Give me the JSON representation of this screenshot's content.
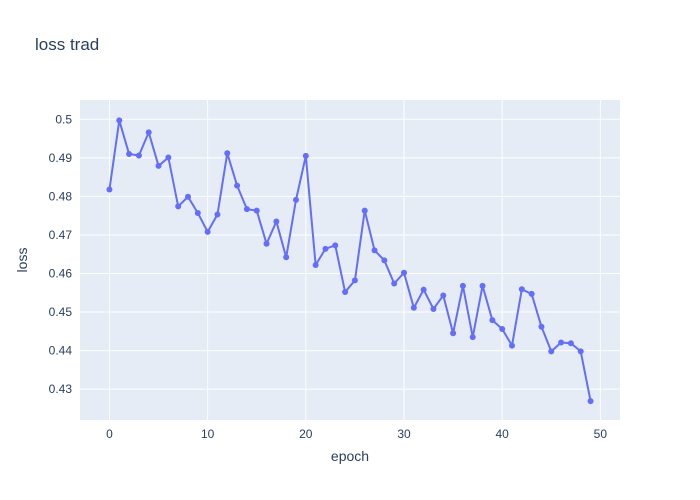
{
  "chart_data": {
    "type": "line",
    "title": "loss trad",
    "xlabel": "epoch",
    "ylabel": "loss",
    "xlim": [
      -3,
      52
    ],
    "ylim": [
      0.422,
      0.505
    ],
    "x_ticks": [
      0,
      10,
      20,
      30,
      40,
      50
    ],
    "y_ticks": [
      0.43,
      0.44,
      0.45,
      0.46,
      0.47,
      0.48,
      0.49,
      0.5
    ],
    "x_tick_labels": [
      "0",
      "10",
      "20",
      "30",
      "40",
      "50"
    ],
    "y_tick_labels": [
      "0.43",
      "0.44",
      "0.45",
      "0.46",
      "0.47",
      "0.48",
      "0.49",
      "0.5"
    ],
    "grid": true,
    "legend": false,
    "colors": {
      "line": "#636efa",
      "plot_bg": "#e5ecf6",
      "grid": "#ffffff",
      "text": "#2a3f5f"
    },
    "series": [
      {
        "x": [
          0,
          1,
          2,
          3,
          4,
          5,
          6,
          7,
          8,
          9,
          10,
          11,
          12,
          13,
          14,
          15,
          16,
          17,
          18,
          19,
          20,
          21,
          22,
          23,
          24,
          25,
          26,
          27,
          28,
          29,
          30,
          31,
          32,
          33,
          34,
          35,
          36,
          37,
          38,
          39,
          40,
          41,
          42,
          43,
          44,
          45,
          46,
          47,
          48,
          49
        ],
        "values": [
          0.4818,
          0.4997,
          0.491,
          0.4906,
          0.4966,
          0.4879,
          0.4901,
          0.4774,
          0.4799,
          0.4757,
          0.4708,
          0.4753,
          0.4912,
          0.4828,
          0.4767,
          0.4763,
          0.4677,
          0.4735,
          0.4642,
          0.4791,
          0.4905,
          0.4622,
          0.4664,
          0.4673,
          0.4552,
          0.4582,
          0.4763,
          0.466,
          0.4634,
          0.4574,
          0.4602,
          0.4511,
          0.4558,
          0.4508,
          0.4543,
          0.4445,
          0.4568,
          0.4435,
          0.4568,
          0.4479,
          0.4456,
          0.4413,
          0.4559,
          0.4547,
          0.4462,
          0.4398,
          0.4421,
          0.4419,
          0.4398,
          0.4269
        ]
      }
    ]
  }
}
